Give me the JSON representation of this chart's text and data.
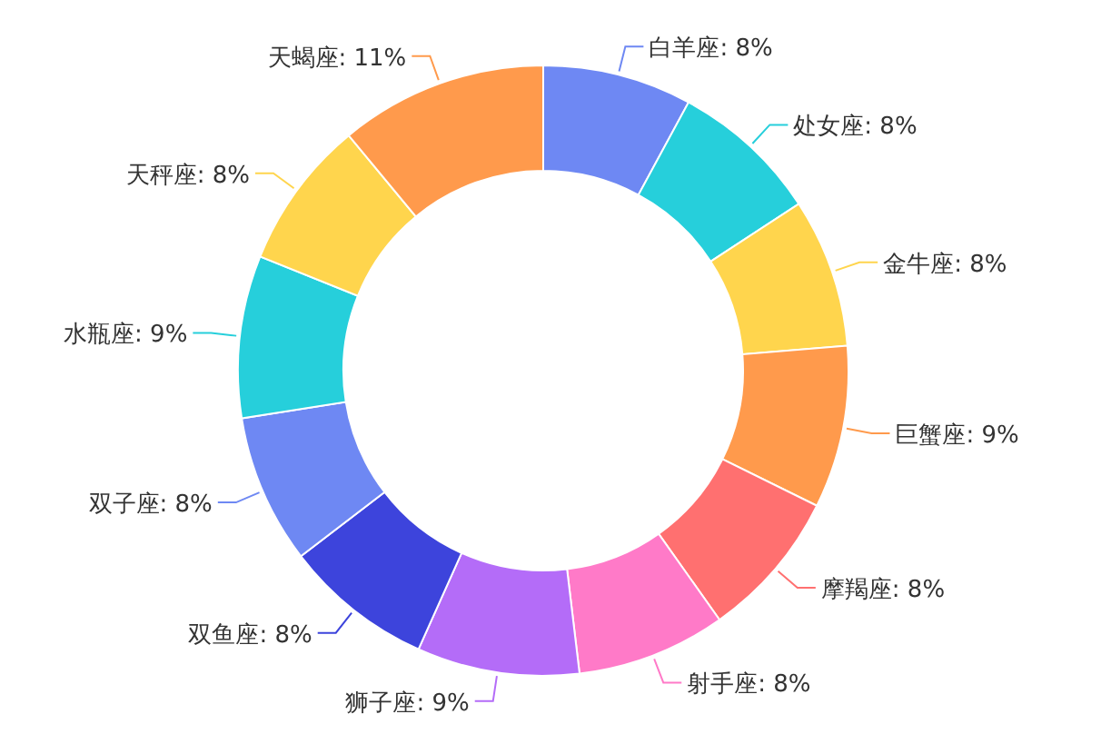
{
  "chart_data": {
    "type": "donut",
    "categories": [
      "白羊座",
      "处女座",
      "金牛座",
      "巨蟹座",
      "摩羯座",
      "射手座",
      "狮子座",
      "双鱼座",
      "双子座",
      "水瓶座",
      "天秤座",
      "天蝎座"
    ],
    "values": [
      7.9,
      7.9,
      7.9,
      8.6,
      7.9,
      7.9,
      8.6,
      7.9,
      7.9,
      8.6,
      7.9,
      11.0
    ],
    "value_labels": [
      "8%",
      "8%",
      "8%",
      "9%",
      "8%",
      "8%",
      "9%",
      "8%",
      "8%",
      "9%",
      "8%",
      "11%"
    ],
    "colors": [
      "#6e88f3",
      "#26cfdb",
      "#ffd54d",
      "#ff9a4c",
      "#ff7070",
      "#ff7ac8",
      "#b46cf8",
      "#3d44dc",
      "#6e88f3",
      "#26cfdb",
      "#ffd54d",
      "#ff9a4c"
    ]
  }
}
